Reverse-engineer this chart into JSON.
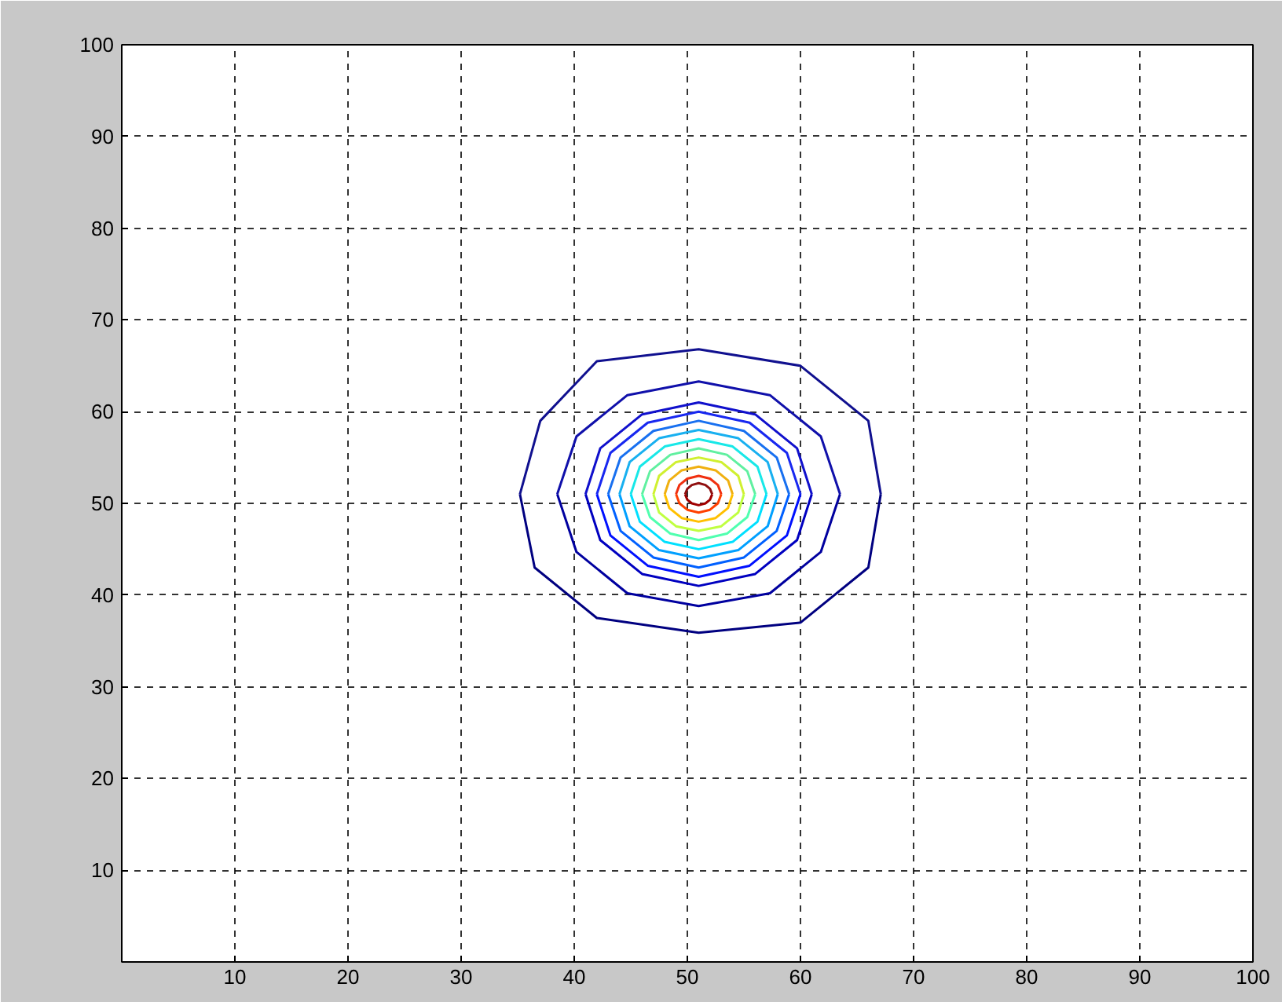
{
  "chart_data": {
    "type": "line",
    "xlim": [
      0,
      100
    ],
    "ylim": [
      0,
      100
    ],
    "xticks": [
      10,
      20,
      30,
      40,
      50,
      60,
      70,
      80,
      90,
      100
    ],
    "yticks": [
      10,
      20,
      30,
      40,
      50,
      60,
      70,
      80,
      90,
      100
    ],
    "grid": true,
    "marker": "none",
    "line_style": "solid",
    "series": [
      {
        "color": "#000080",
        "x": [
          35.2,
          36.5,
          42,
          51,
          60,
          66,
          67.1
        ],
        "values": [
          51,
          43,
          37.5,
          35.9,
          37,
          43,
          51
        ]
      },
      {
        "color": "#10108f",
        "x": [
          35.2,
          37,
          42,
          51,
          60,
          66,
          67.1
        ],
        "values": [
          51,
          59,
          65.5,
          66.8,
          65,
          59,
          51
        ]
      },
      {
        "color": "#00009f",
        "x": [
          38.5,
          40.2,
          44.7,
          51,
          57.3,
          61.8,
          63.5
        ],
        "values": [
          51,
          44.7,
          40.2,
          38.8,
          40.2,
          44.7,
          51
        ]
      },
      {
        "color": "#1010aa",
        "x": [
          38.5,
          40.2,
          44.7,
          51,
          57.3,
          61.8,
          63.5
        ],
        "values": [
          51,
          57.3,
          61.8,
          63.3,
          61.8,
          57.3,
          51
        ]
      },
      {
        "color": "#0000c0",
        "x": [
          41,
          42.3,
          46,
          51,
          56,
          59.7,
          61
        ],
        "values": [
          51,
          46,
          42.3,
          41,
          42.3,
          46,
          51
        ]
      },
      {
        "color": "#1010cc",
        "x": [
          41,
          42.3,
          46,
          51,
          56,
          59.7,
          61
        ],
        "values": [
          51,
          56,
          59.7,
          61,
          59.7,
          56,
          51
        ]
      },
      {
        "color": "#0010ff",
        "x": [
          42,
          43.2,
          46.5,
          51,
          55.5,
          58.8,
          60
        ],
        "values": [
          51,
          46.5,
          43.2,
          42,
          43.2,
          46.5,
          51
        ]
      },
      {
        "color": "#1828f0",
        "x": [
          42,
          43.2,
          46.5,
          51,
          55.5,
          58.8,
          60
        ],
        "values": [
          51,
          55.5,
          58.8,
          60,
          58.8,
          55.5,
          51
        ]
      },
      {
        "color": "#0060ff",
        "x": [
          43,
          44.1,
          47,
          51,
          55,
          57.9,
          59
        ],
        "values": [
          51,
          47,
          44.1,
          43,
          44.1,
          47,
          51
        ]
      },
      {
        "color": "#1870f0",
        "x": [
          43,
          44.1,
          47,
          51,
          55,
          57.9,
          59
        ],
        "values": [
          51,
          55,
          57.9,
          59,
          57.9,
          55,
          51
        ]
      },
      {
        "color": "#00a0ff",
        "x": [
          44,
          44.9,
          47.5,
          51,
          54.5,
          57.1,
          58
        ],
        "values": [
          51,
          47.5,
          44.9,
          44,
          44.9,
          47.5,
          51
        ]
      },
      {
        "color": "#18b0f0",
        "x": [
          44,
          44.9,
          47.5,
          51,
          54.5,
          57.1,
          58
        ],
        "values": [
          51,
          54.5,
          57.1,
          58,
          57.1,
          54.5,
          51
        ]
      },
      {
        "color": "#00e0ff",
        "x": [
          45,
          45.8,
          48,
          51,
          54,
          56.2,
          57
        ],
        "values": [
          51,
          48,
          45.8,
          45,
          45.8,
          48,
          51
        ]
      },
      {
        "color": "#18e8e8",
        "x": [
          45,
          45.8,
          48,
          51,
          54,
          56.2,
          57
        ],
        "values": [
          51,
          54,
          56.2,
          57,
          56.2,
          54,
          51
        ]
      },
      {
        "color": "#50ffaf",
        "x": [
          46,
          46.7,
          48.5,
          51,
          53.5,
          55.3,
          56
        ],
        "values": [
          51,
          48.5,
          46.7,
          46,
          46.7,
          48.5,
          51
        ]
      },
      {
        "color": "#60f0a0",
        "x": [
          46,
          46.7,
          48.5,
          51,
          53.5,
          55.3,
          56
        ],
        "values": [
          51,
          53.5,
          55.3,
          56,
          55.3,
          53.5,
          51
        ]
      },
      {
        "color": "#c0ff40",
        "x": [
          47,
          47.5,
          49,
          51,
          53,
          54.5,
          55
        ],
        "values": [
          51,
          49,
          47.5,
          47,
          47.5,
          49,
          51
        ]
      },
      {
        "color": "#d0f030",
        "x": [
          47,
          47.5,
          49,
          51,
          53,
          54.5,
          55
        ],
        "values": [
          51,
          53,
          54.5,
          55,
          54.5,
          53,
          51
        ]
      },
      {
        "color": "#ffc000",
        "x": [
          48,
          48.4,
          49.5,
          51,
          52.5,
          53.6,
          54
        ],
        "values": [
          51,
          49.5,
          48.4,
          48,
          48.4,
          49.5,
          51
        ]
      },
      {
        "color": "#f0b010",
        "x": [
          48,
          48.4,
          49.5,
          51,
          52.5,
          53.6,
          54
        ],
        "values": [
          51,
          52.5,
          53.6,
          54,
          53.6,
          52.5,
          51
        ]
      },
      {
        "color": "#ff4000",
        "x": [
          49,
          49.3,
          50,
          51,
          52,
          52.7,
          53
        ],
        "values": [
          51,
          50,
          49.3,
          49,
          49.3,
          50,
          51
        ]
      },
      {
        "color": "#f03010",
        "x": [
          49,
          49.3,
          50,
          51,
          52,
          52.7,
          53
        ],
        "values": [
          51,
          52,
          52.7,
          53,
          52.7,
          52,
          51
        ]
      },
      {
        "color": "#a00000",
        "x": [
          49.8,
          50,
          50.4,
          51,
          51.6,
          52,
          52.2
        ],
        "values": [
          51,
          50.4,
          50,
          49.8,
          50,
          50.4,
          51
        ]
      },
      {
        "color": "#901010",
        "x": [
          49.8,
          50,
          50.4,
          51,
          51.6,
          52,
          52.2
        ],
        "values": [
          51,
          51.6,
          52,
          52.2,
          52,
          51.6,
          51
        ]
      }
    ]
  }
}
